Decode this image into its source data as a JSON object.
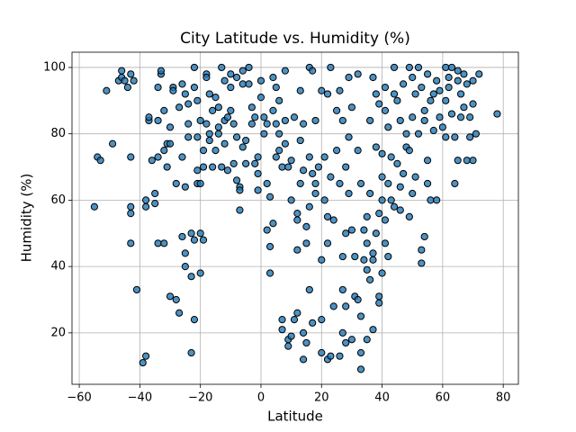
{
  "chart_data": {
    "type": "scatter",
    "title": "City Latitude vs. Humidity (%)",
    "xlabel": "Latitude",
    "ylabel": "Humidity (%)",
    "color": "#1f77b4",
    "edgecolor": "#000000",
    "grid": true,
    "xlim": [
      -62.4,
      85
    ],
    "ylim": [
      4.5,
      104.6
    ],
    "xticks": [
      {
        "value": -60,
        "label": "−60"
      },
      {
        "value": -40,
        "label": "−40"
      },
      {
        "value": -20,
        "label": "−20"
      },
      0,
      20,
      40,
      60,
      80
    ],
    "yticks": [
      20,
      40,
      60,
      80,
      100
    ],
    "x": [
      -55,
      -54,
      -53,
      -51,
      -49,
      -47,
      -46,
      -46,
      -45,
      -44,
      -43,
      -43,
      -43,
      -43,
      -43,
      -42,
      -41,
      -39,
      -38,
      -38,
      -38,
      -37,
      -37,
      -36,
      -35,
      -35,
      -34,
      -34,
      -34,
      -34,
      -33,
      -33,
      -32,
      -32,
      -32,
      -31,
      -31,
      -30,
      -30,
      -30,
      -29,
      -29,
      -28,
      -28,
      -27,
      -27,
      -26,
      -26,
      -26,
      -25,
      -25,
      -25,
      -25,
      -24,
      -24,
      -24,
      -23,
      -23,
      -23,
      -22,
      -22,
      -22,
      -22,
      -21,
      -21,
      -21,
      -21,
      -20,
      -20,
      -20,
      -20,
      -19,
      -19,
      -19,
      -18,
      -18,
      -18,
      -17,
      -17,
      -17,
      -16,
      -16,
      -15,
      -15,
      -14,
      -14,
      -14,
      -13,
      -13,
      -12,
      -12,
      -12,
      -11,
      -11,
      -10,
      -10,
      -10,
      -9,
      -9,
      -8,
      -8,
      -8,
      -7,
      -7,
      -7,
      -6,
      -6,
      -6,
      -5,
      -5,
      -4,
      -4,
      -3,
      -3,
      -2,
      -2,
      -1,
      -1,
      -1,
      0,
      0,
      1,
      1,
      2,
      2,
      2,
      3,
      3,
      3,
      4,
      4,
      4,
      5,
      5,
      5,
      6,
      6,
      6,
      7,
      7,
      7,
      8,
      8,
      8,
      9,
      9,
      9,
      10,
      10,
      10,
      11,
      11,
      12,
      12,
      12,
      12,
      13,
      13,
      13,
      14,
      14,
      14,
      14,
      15,
      15,
      15,
      16,
      16,
      16,
      16,
      17,
      17,
      17,
      18,
      18,
      18,
      19,
      20,
      20,
      20,
      20,
      21,
      21,
      22,
      22,
      22,
      22,
      23,
      23,
      23,
      24,
      24,
      25,
      25,
      26,
      26,
      26,
      27,
      27,
      27,
      27,
      28,
      28,
      28,
      28,
      29,
      29,
      29,
      30,
      30,
      30,
      31,
      31,
      32,
      32,
      32,
      33,
      33,
      33,
      33,
      34,
      34,
      35,
      35,
      35,
      35,
      36,
      36,
      36,
      37,
      37,
      37,
      37,
      38,
      38,
      38,
      39,
      39,
      39,
      39,
      40,
      40,
      40,
      40,
      41,
      41,
      41,
      41,
      42,
      42,
      42,
      43,
      43,
      44,
      44,
      44,
      45,
      45,
      46,
      46,
      46,
      47,
      47,
      48,
      48,
      49,
      49,
      49,
      50,
      50,
      50,
      51,
      51,
      52,
      52,
      53,
      53,
      53,
      54,
      54,
      54,
      55,
      55,
      55,
      56,
      56,
      57,
      57,
      58,
      58,
      59,
      59,
      60,
      61,
      61,
      61,
      62,
      62,
      63,
      63,
      64,
      64,
      65,
      65,
      65,
      66,
      66,
      67,
      67,
      68,
      68,
      69,
      69,
      70,
      70,
      70,
      71,
      72,
      78
    ],
    "y": [
      58,
      73,
      72,
      93,
      77,
      96,
      97,
      99,
      96,
      94,
      98,
      73,
      58,
      56,
      47,
      96,
      33,
      11,
      13,
      60,
      58,
      84,
      85,
      72,
      62,
      59,
      47,
      73,
      84,
      94,
      98,
      99,
      87,
      47,
      75,
      77,
      70,
      31,
      77,
      82,
      94,
      93,
      30,
      65,
      88,
      26,
      73,
      49,
      95,
      64,
      44,
      40,
      92,
      83,
      79,
      89,
      37,
      50,
      14,
      48,
      100,
      94,
      24,
      79,
      69,
      65,
      90,
      84,
      50,
      38,
      65,
      48,
      75,
      70,
      83,
      98,
      97,
      92,
      78,
      80,
      87,
      70,
      75,
      91,
      88,
      82,
      80,
      100,
      70,
      96,
      84,
      77,
      69,
      85,
      94,
      98,
      87,
      71,
      83,
      66,
      97,
      79,
      64,
      57,
      63,
      99,
      95,
      76,
      71,
      78,
      100,
      95,
      83,
      88,
      71,
      85,
      73,
      63,
      68,
      96,
      91,
      85,
      80,
      83,
      65,
      51,
      61,
      46,
      38,
      53,
      97,
      87,
      94,
      83,
      73,
      90,
      80,
      75,
      70,
      21,
      24,
      99,
      84,
      77,
      16,
      18,
      70,
      19,
      72,
      60,
      85,
      24,
      26,
      56,
      54,
      45,
      93,
      78,
      65,
      12,
      20,
      83,
      69,
      47,
      17,
      52,
      33,
      100,
      73,
      58,
      23,
      68,
      99,
      84,
      65,
      62,
      70,
      24,
      14,
      42,
      93,
      60,
      73,
      12,
      92,
      55,
      47,
      100,
      13,
      67,
      54,
      28,
      87,
      75,
      65,
      13,
      93,
      20,
      33,
      84,
      43,
      28,
      17,
      70,
      50,
      97,
      62,
      79,
      18,
      88,
      51,
      31,
      43,
      98,
      75,
      30,
      25,
      14,
      9,
      65,
      51,
      42,
      55,
      47,
      39,
      18,
      62,
      84,
      36,
      21,
      97,
      42,
      44,
      50,
      92,
      76,
      29,
      56,
      31,
      89,
      60,
      74,
      38,
      67,
      54,
      47,
      87,
      94,
      65,
      82,
      43,
      73,
      60,
      100,
      92,
      58,
      71,
      90,
      84,
      64,
      57,
      95,
      68,
      80,
      76,
      100,
      55,
      75,
      97,
      85,
      62,
      92,
      67,
      100,
      80,
      45,
      41,
      94,
      49,
      87,
      84,
      98,
      65,
      72,
      90,
      60,
      81,
      92,
      96,
      60,
      85,
      93,
      82,
      100,
      90,
      79,
      97,
      94,
      100,
      86,
      65,
      79,
      96,
      99,
      72,
      92,
      85,
      88,
      98,
      72,
      95,
      79,
      85,
      89,
      96,
      72,
      80,
      98,
      86
    ]
  }
}
